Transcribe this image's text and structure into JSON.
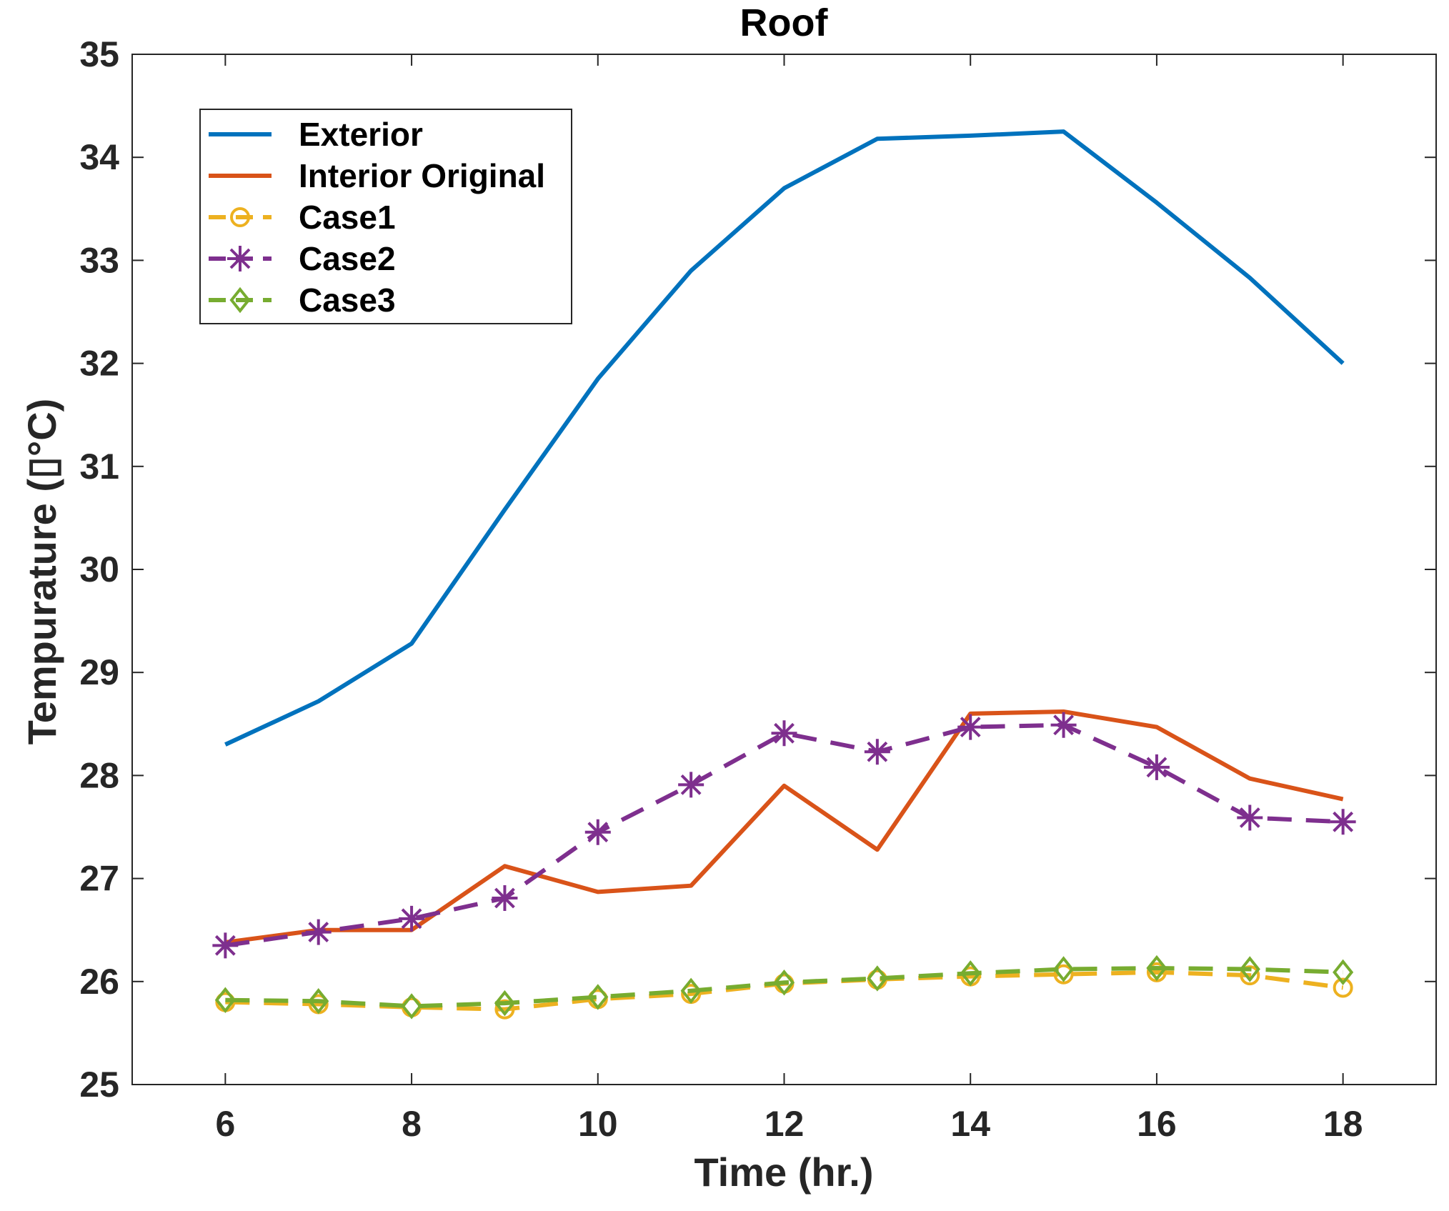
{
  "chart_data": {
    "type": "line",
    "title": "Roof",
    "xlabel": "Time (hr.)",
    "ylabel": "Tempurature (▯°C)",
    "xlim": [
      5,
      19
    ],
    "ylim": [
      25,
      35
    ],
    "xticks": [
      6,
      8,
      10,
      12,
      14,
      16,
      18
    ],
    "yticks": [
      25,
      26,
      27,
      28,
      29,
      30,
      31,
      32,
      33,
      34,
      35
    ],
    "grid": false,
    "legend_position": "top-left",
    "x": [
      6,
      7,
      8,
      9,
      10,
      11,
      12,
      13,
      14,
      15,
      16,
      17,
      18
    ],
    "series": [
      {
        "name": "Exterior",
        "color": "#0072BD",
        "style": "solid",
        "marker": "none",
        "values": [
          28.3,
          28.72,
          29.28,
          30.58,
          31.85,
          32.9,
          33.7,
          34.18,
          34.21,
          34.25,
          33.56,
          32.83,
          32.0
        ]
      },
      {
        "name": "Interior Original",
        "color": "#D95319",
        "style": "solid",
        "marker": "none",
        "values": [
          26.38,
          26.5,
          26.5,
          27.12,
          26.87,
          26.93,
          27.9,
          27.28,
          28.6,
          28.62,
          28.47,
          27.97,
          27.77
        ]
      },
      {
        "name": "Case1",
        "color": "#EDB120",
        "style": "dashed",
        "marker": "circle",
        "values": [
          25.8,
          25.78,
          25.75,
          25.73,
          25.83,
          25.88,
          25.98,
          26.02,
          26.05,
          26.07,
          26.09,
          26.06,
          25.94
        ]
      },
      {
        "name": "Case2",
        "color": "#7E2F8E",
        "style": "dashed",
        "marker": "asterisk",
        "values": [
          26.35,
          26.48,
          26.61,
          26.81,
          27.45,
          27.91,
          28.41,
          28.23,
          28.47,
          28.49,
          28.08,
          27.59,
          27.55
        ]
      },
      {
        "name": "Case3",
        "color": "#77AC30",
        "style": "dashed",
        "marker": "diamond",
        "values": [
          25.82,
          25.81,
          25.76,
          25.79,
          25.85,
          25.91,
          25.99,
          26.03,
          26.08,
          26.12,
          26.13,
          26.12,
          26.09
        ]
      }
    ]
  }
}
